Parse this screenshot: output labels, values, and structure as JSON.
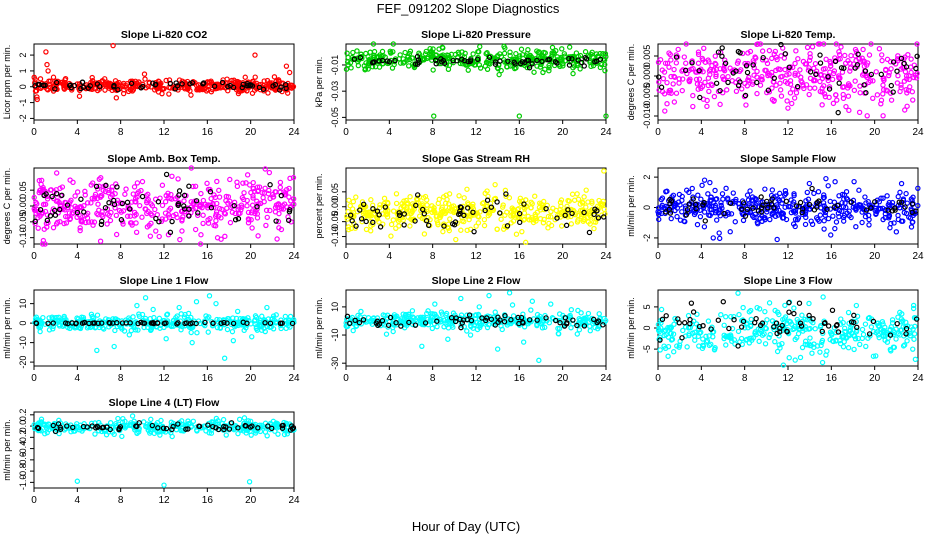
{
  "figure": {
    "title": "FEF_091202  Slope Diagnostics",
    "xlabel": "Hour of Day (UTC)"
  },
  "chart_data": [
    {
      "type": "scatter",
      "title": "Slope Li-820 CO2",
      "ylabel": "Licor ppm per min.",
      "xlim": [
        0,
        24
      ],
      "ylim": [
        -2.1,
        2.7
      ],
      "xticks": [
        0,
        4,
        8,
        12,
        16,
        20,
        24
      ],
      "yticks": [
        -2,
        -1,
        0,
        1,
        2
      ],
      "ytick_labels": [
        "-2",
        "-1",
        "0",
        "1",
        "2"
      ],
      "series": [
        {
          "color": "#ff0000",
          "center": 0.05,
          "spread": 0.2,
          "count": 380,
          "outliers": [
            [
              0.3,
              -0.8
            ],
            [
              0.6,
              0.5
            ],
            [
              1.1,
              2.2
            ],
            [
              1.2,
              1.4
            ],
            [
              1.3,
              1.0
            ],
            [
              1.8,
              0.6
            ],
            [
              4.2,
              -0.6
            ],
            [
              7.3,
              2.6
            ],
            [
              7.6,
              -0.7
            ],
            [
              10.2,
              0.8
            ],
            [
              19.5,
              0.6
            ],
            [
              20.4,
              2.0
            ],
            [
              23.3,
              1.3
            ],
            [
              23.6,
              0.9
            ]
          ]
        },
        {
          "color": "#000000",
          "center": 0.05,
          "spread": 0.1,
          "count": 60,
          "outliers": []
        }
      ],
      "grid": false
    },
    {
      "type": "scatter",
      "title": "Slope Li-820 Pressure",
      "ylabel": "kPa per min.",
      "xlim": [
        0,
        24
      ],
      "ylim": [
        -0.052,
        0.006
      ],
      "xticks": [
        0,
        4,
        8,
        12,
        16,
        20,
        24
      ],
      "yticks": [
        -0.05,
        -0.03,
        -0.01
      ],
      "ytick_labels": [
        "-0.05",
        "-0.03",
        "-0.01"
      ],
      "series": [
        {
          "color": "#00cc00",
          "center": -0.006,
          "spread": 0.004,
          "count": 400,
          "outliers": [
            [
              8.1,
              -0.049
            ],
            [
              16.0,
              -0.049
            ],
            [
              24.0,
              -0.049
            ],
            [
              10.1,
              -0.002
            ],
            [
              16.2,
              0.002
            ]
          ]
        },
        {
          "color": "#000000",
          "center": -0.007,
          "spread": 0.0018,
          "count": 60,
          "outliers": []
        }
      ],
      "grid": false
    },
    {
      "type": "scatter",
      "title": "Slope Li-820 Temp.",
      "ylabel": "degrees C per min.",
      "xlim": [
        0,
        24
      ],
      "ylim": [
        -0.011,
        0.008
      ],
      "xticks": [
        0,
        4,
        8,
        12,
        16,
        20,
        24
      ],
      "yticks": [
        -0.01,
        -0.005,
        0.0,
        0.005
      ],
      "ytick_labels": [
        "-0.010",
        "-0.005",
        "0.000",
        "0.005"
      ],
      "series": [
        {
          "color": "#ff00ff",
          "center": 0.0,
          "spread": 0.0038,
          "count": 420,
          "outliers": []
        },
        {
          "color": "#000000",
          "center": 0.0,
          "spread": 0.0035,
          "count": 60,
          "outliers": []
        }
      ],
      "grid": false
    },
    {
      "type": "scatter",
      "title": "Slope Amb. Box Temp.",
      "ylabel": "degrees C per min.",
      "xlim": [
        0,
        24
      ],
      "ylim": [
        -0.12,
        0.12
      ],
      "xticks": [
        0,
        4,
        8,
        12,
        16,
        20,
        24
      ],
      "yticks": [
        -0.1,
        -0.05,
        0.0,
        0.05
      ],
      "ytick_labels": [
        "-0.10",
        "-0.05",
        "0.00",
        "0.05"
      ],
      "series": [
        {
          "color": "#ff00ff",
          "center": 0.0,
          "spread": 0.045,
          "count": 440,
          "outliers": []
        },
        {
          "color": "#000000",
          "center": 0.0,
          "spread": 0.04,
          "count": 60,
          "outliers": []
        }
      ],
      "grid": false
    },
    {
      "type": "scatter",
      "title": "Slope Gas Stream RH",
      "ylabel": "percent per min.",
      "xlim": [
        0,
        24
      ],
      "ylim": [
        -0.125,
        0.13
      ],
      "xticks": [
        0,
        4,
        8,
        12,
        16,
        20,
        24
      ],
      "yticks": [
        -0.1,
        -0.05,
        0.0,
        0.05
      ],
      "ytick_labels": [
        "-0.10",
        "-0.05",
        "0.00",
        "0.05"
      ],
      "series": [
        {
          "color": "#ffff00",
          "center": -0.02,
          "spread": 0.03,
          "count": 440,
          "outliers": [
            [
              23.8,
              0.12
            ]
          ]
        },
        {
          "color": "#000000",
          "center": -0.02,
          "spread": 0.025,
          "count": 60,
          "outliers": []
        }
      ],
      "grid": false
    },
    {
      "type": "scatter",
      "title": "Slope Sample Flow",
      "ylabel": "ml/min per min.",
      "xlim": [
        0,
        24
      ],
      "ylim": [
        -2.4,
        2.6
      ],
      "xticks": [
        0,
        4,
        8,
        12,
        16,
        20,
        24
      ],
      "yticks": [
        -2,
        0,
        2
      ],
      "ytick_labels": [
        "-2",
        "0",
        "2"
      ],
      "series": [
        {
          "color": "#0000ff",
          "center": 0.0,
          "spread": 0.6,
          "count": 430,
          "outliers": [
            [
              4.3,
              1.8
            ],
            [
              5.1,
              -2.0
            ],
            [
              11.0,
              -2.1
            ],
            [
              18.1,
              1.7
            ],
            [
              15.5,
              1.9
            ],
            [
              22.0,
              -1.6
            ]
          ]
        },
        {
          "color": "#000000",
          "center": 0.0,
          "spread": 0.35,
          "count": 60,
          "outliers": []
        }
      ],
      "grid": false
    },
    {
      "type": "scatter",
      "title": "Slope Line 1 Flow",
      "ylabel": "ml/min per min.",
      "xlim": [
        0,
        24
      ],
      "ylim": [
        -22,
        17
      ],
      "xticks": [
        0,
        4,
        8,
        12,
        16,
        20,
        24
      ],
      "yticks": [
        -20,
        -10,
        0,
        10
      ],
      "ytick_labels": [
        "-20",
        "-10",
        "0",
        "10"
      ],
      "series": [
        {
          "color": "#00ffff",
          "center": 0.0,
          "spread": 2.0,
          "count": 360,
          "outliers": [
            [
              5.8,
              -14
            ],
            [
              7.4,
              -12
            ],
            [
              8.8,
              -6
            ],
            [
              9.5,
              9
            ],
            [
              10.3,
              13
            ],
            [
              11.0,
              7
            ],
            [
              12.2,
              -8
            ],
            [
              13.4,
              8
            ],
            [
              14.6,
              -10
            ],
            [
              15.0,
              11
            ],
            [
              16.2,
              14
            ],
            [
              16.8,
              10
            ],
            [
              17.6,
              -18
            ],
            [
              18.4,
              -9
            ],
            [
              18.8,
              6
            ],
            [
              20.1,
              -7
            ],
            [
              21.5,
              8
            ]
          ]
        },
        {
          "color": "#000000",
          "center": 0.0,
          "spread": 0.2,
          "count": 60,
          "outliers": []
        }
      ],
      "grid": false
    },
    {
      "type": "scatter",
      "title": "Slope Line 2 Flow",
      "ylabel": "ml/min per min.",
      "xlim": [
        0,
        24
      ],
      "ylim": [
        -32,
        22
      ],
      "xticks": [
        0,
        4,
        8,
        12,
        16,
        20,
        24
      ],
      "yticks": [
        -30,
        -10,
        10
      ],
      "ytick_labels": [
        "-30",
        "-10",
        "10"
      ],
      "series": [
        {
          "color": "#00ffff",
          "center": 0.0,
          "spread": 3.0,
          "count": 360,
          "outliers": [
            [
              7.0,
              -18
            ],
            [
              8.2,
              12
            ],
            [
              9.4,
              -13
            ],
            [
              10.6,
              16
            ],
            [
              11.5,
              -10
            ],
            [
              12.3,
              10
            ],
            [
              13.2,
              18
            ],
            [
              14.0,
              -20
            ],
            [
              15.1,
              20
            ],
            [
              16.4,
              -15
            ],
            [
              17.2,
              14
            ],
            [
              17.8,
              -28
            ],
            [
              18.9,
              12
            ],
            [
              19.6,
              -9
            ],
            [
              20.8,
              8
            ]
          ]
        },
        {
          "color": "#000000",
          "center": 0.0,
          "spread": 2.0,
          "count": 60,
          "outliers": []
        }
      ],
      "grid": false
    },
    {
      "type": "scatter",
      "title": "Slope Line 3 Flow",
      "ylabel": "ml/min per min.",
      "xlim": [
        0,
        24
      ],
      "ylim": [
        -9,
        9
      ],
      "xticks": [
        0,
        4,
        8,
        12,
        16,
        20,
        24
      ],
      "yticks": [
        -5,
        0,
        5
      ],
      "ytick_labels": [
        "-5",
        "0",
        "5"
      ],
      "series": [
        {
          "color": "#00ffff",
          "center": -1.0,
          "spread": 2.8,
          "count": 380,
          "outliers": []
        },
        {
          "color": "#000000",
          "center": 1.0,
          "spread": 2.5,
          "count": 60,
          "outliers": []
        }
      ],
      "grid": false
    },
    {
      "type": "scatter",
      "title": "Slope Line 4 (LT) Flow",
      "ylabel": "ml/min per min.",
      "xlim": [
        0,
        24
      ],
      "ylim": [
        -1.1,
        0.25
      ],
      "xticks": [
        0,
        4,
        8,
        12,
        16,
        20,
        24
      ],
      "yticks": [
        -1.0,
        -0.8,
        -0.6,
        -0.4,
        -0.2,
        0.0,
        0.2
      ],
      "ytick_labels": [
        "-1.0",
        "-0.8",
        "-0.6",
        "-0.4",
        "-0.2",
        "0.0",
        "0.2"
      ],
      "series": [
        {
          "color": "#00ffff",
          "center": -0.02,
          "spread": 0.06,
          "count": 330,
          "outliers": [
            [
              4.0,
              -0.98
            ],
            [
              12.0,
              -1.05
            ],
            [
              19.9,
              -0.99
            ],
            [
              9.1,
              0.18
            ]
          ]
        },
        {
          "color": "#000000",
          "center": -0.02,
          "spread": 0.03,
          "count": 60,
          "outliers": []
        }
      ],
      "grid": false
    }
  ]
}
